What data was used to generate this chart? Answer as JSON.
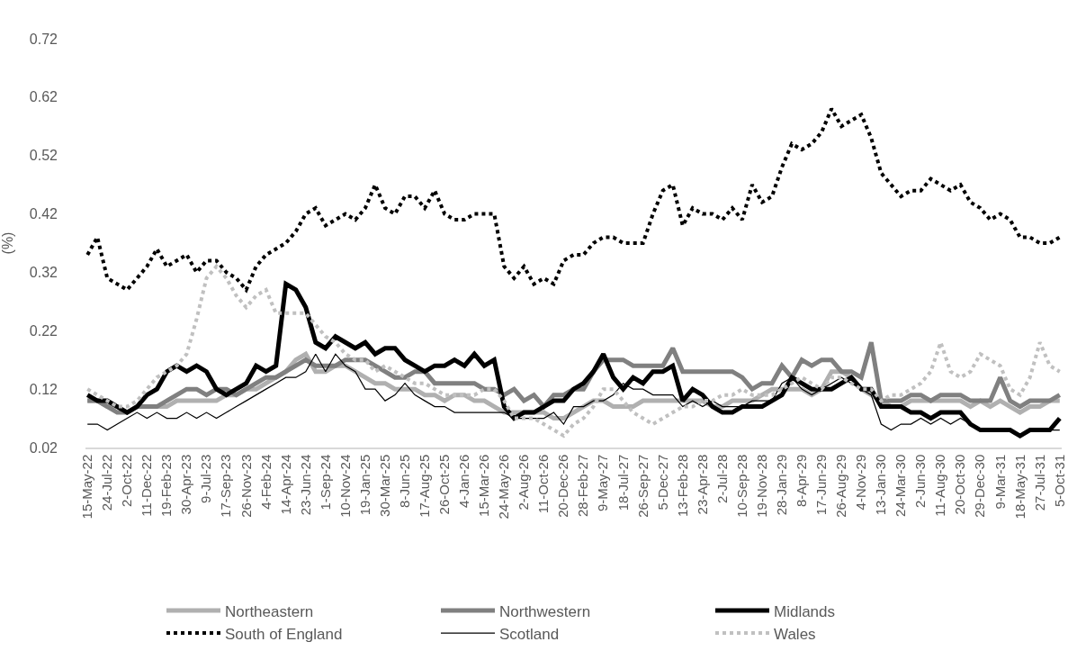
{
  "chart_data": {
    "type": "line",
    "ylabel": "(%)",
    "x": [
      "2022-05-15",
      "2022-06-19",
      "2022-07-24",
      "2022-08-28",
      "2022-10-02",
      "2022-11-06",
      "2022-12-11",
      "2023-01-15",
      "2023-02-19",
      "2023-03-26",
      "2023-04-30",
      "2023-06-04",
      "2023-07-09",
      "2023-08-13",
      "2023-09-17",
      "2023-10-22",
      "2023-11-26",
      "2023-12-31",
      "2024-02-04",
      "2024-03-10",
      "2024-04-14",
      "2024-05-19",
      "2024-06-23",
      "2024-07-28",
      "2024-09-01",
      "2024-10-06",
      "2024-11-10",
      "2024-12-15",
      "2025-01-19",
      "2025-02-23",
      "2025-03-30",
      "2025-05-04",
      "2025-06-08",
      "2025-07-13",
      "2025-08-17",
      "2025-09-21",
      "2025-10-26",
      "2025-11-30",
      "2026-01-04",
      "2026-02-08",
      "2026-03-15",
      "2026-04-19",
      "2026-05-24",
      "2026-06-28",
      "2026-08-02",
      "2026-09-06",
      "2026-10-11",
      "2026-11-15",
      "2026-12-20",
      "2027-01-24",
      "2027-02-28",
      "2027-04-04",
      "2027-05-09",
      "2027-06-13",
      "2027-07-18",
      "2027-08-22",
      "2027-09-26",
      "2027-10-31",
      "2027-12-05",
      "2028-01-09",
      "2028-02-13",
      "2028-03-19",
      "2028-04-23",
      "2028-05-28",
      "2028-07-02",
      "2028-08-06",
      "2028-09-10",
      "2028-10-15",
      "2028-11-19",
      "2028-12-24",
      "2029-01-28",
      "2029-03-04",
      "2029-04-08",
      "2029-05-13",
      "2029-06-17",
      "2029-07-22",
      "2029-08-26",
      "2029-09-30",
      "2029-11-04",
      "2029-12-09",
      "2030-01-13",
      "2030-02-17",
      "2030-03-24",
      "2030-04-28",
      "2030-06-02",
      "2030-07-07",
      "2030-08-11",
      "2030-09-15",
      "2030-10-20",
      "2030-11-24",
      "2030-12-29",
      "2031-02-02",
      "2031-03-09",
      "2031-04-13",
      "2031-05-18",
      "2031-06-22",
      "2031-07-27",
      "2031-08-31",
      "2031-10-05"
    ],
    "series": [
      {
        "name": "Northeastern",
        "color": "#b0b0b0",
        "line_style": "solid",
        "values": [
          0.1,
          0.1,
          0.09,
          0.09,
          0.08,
          0.09,
          0.09,
          0.09,
          0.09,
          0.1,
          0.1,
          0.1,
          0.1,
          0.1,
          0.11,
          0.11,
          0.12,
          0.12,
          0.13,
          0.14,
          0.15,
          0.17,
          0.18,
          0.15,
          0.15,
          0.16,
          0.16,
          0.15,
          0.14,
          0.13,
          0.13,
          0.12,
          0.12,
          0.12,
          0.11,
          0.11,
          0.1,
          0.11,
          0.11,
          0.1,
          0.1,
          0.09,
          0.08,
          0.08,
          0.08,
          0.08,
          0.08,
          0.07,
          0.07,
          0.08,
          0.09,
          0.1,
          0.1,
          0.09,
          0.09,
          0.09,
          0.1,
          0.1,
          0.1,
          0.1,
          0.1,
          0.1,
          0.1,
          0.09,
          0.09,
          0.1,
          0.1,
          0.1,
          0.11,
          0.12,
          0.12,
          0.12,
          0.12,
          0.11,
          0.12,
          0.15,
          0.15,
          0.14,
          0.12,
          0.11,
          0.1,
          0.09,
          0.09,
          0.1,
          0.1,
          0.1,
          0.1,
          0.1,
          0.1,
          0.09,
          0.1,
          0.09,
          0.1,
          0.09,
          0.08,
          0.09,
          0.09,
          0.1,
          0.1
        ]
      },
      {
        "name": "Northwestern",
        "color": "#808080",
        "line_style": "solid",
        "values": [
          0.1,
          0.1,
          0.09,
          0.08,
          0.08,
          0.09,
          0.09,
          0.09,
          0.1,
          0.11,
          0.12,
          0.12,
          0.11,
          0.12,
          0.12,
          0.11,
          0.12,
          0.13,
          0.14,
          0.14,
          0.15,
          0.16,
          0.17,
          0.16,
          0.16,
          0.16,
          0.17,
          0.17,
          0.17,
          0.16,
          0.15,
          0.14,
          0.14,
          0.15,
          0.15,
          0.13,
          0.13,
          0.13,
          0.13,
          0.13,
          0.12,
          0.12,
          0.11,
          0.12,
          0.1,
          0.11,
          0.09,
          0.11,
          0.11,
          0.12,
          0.12,
          0.15,
          0.17,
          0.17,
          0.17,
          0.16,
          0.16,
          0.16,
          0.16,
          0.19,
          0.15,
          0.15,
          0.15,
          0.15,
          0.15,
          0.15,
          0.14,
          0.12,
          0.13,
          0.13,
          0.16,
          0.14,
          0.17,
          0.16,
          0.17,
          0.17,
          0.15,
          0.15,
          0.14,
          0.2,
          0.1,
          0.1,
          0.1,
          0.11,
          0.11,
          0.1,
          0.11,
          0.11,
          0.11,
          0.1,
          0.1,
          0.1,
          0.14,
          0.1,
          0.09,
          0.1,
          0.1,
          0.1,
          0.11
        ]
      },
      {
        "name": "Midlands",
        "color": "#000000",
        "line_style": "solid",
        "values": [
          0.11,
          0.1,
          0.1,
          0.09,
          0.08,
          0.09,
          0.11,
          0.12,
          0.15,
          0.16,
          0.15,
          0.16,
          0.15,
          0.12,
          0.11,
          0.12,
          0.13,
          0.16,
          0.15,
          0.16,
          0.3,
          0.29,
          0.26,
          0.2,
          0.19,
          0.21,
          0.2,
          0.19,
          0.2,
          0.18,
          0.19,
          0.19,
          0.17,
          0.16,
          0.15,
          0.16,
          0.16,
          0.17,
          0.16,
          0.18,
          0.16,
          0.17,
          0.09,
          0.07,
          0.08,
          0.08,
          0.09,
          0.1,
          0.1,
          0.12,
          0.13,
          0.15,
          0.18,
          0.14,
          0.12,
          0.14,
          0.13,
          0.15,
          0.15,
          0.16,
          0.1,
          0.12,
          0.11,
          0.09,
          0.08,
          0.08,
          0.09,
          0.09,
          0.09,
          0.1,
          0.11,
          0.14,
          0.13,
          0.12,
          0.12,
          0.12,
          0.13,
          0.14,
          0.12,
          0.12,
          0.09,
          0.09,
          0.09,
          0.08,
          0.08,
          0.07,
          0.08,
          0.08,
          0.08,
          0.06,
          0.05,
          0.05,
          0.05,
          0.05,
          0.04,
          0.05,
          0.05,
          0.05,
          0.07
        ]
      },
      {
        "name": "South of England",
        "color": "#000000",
        "line_style": "dotted",
        "values": [
          0.35,
          0.38,
          0.31,
          0.3,
          0.29,
          0.31,
          0.33,
          0.36,
          0.33,
          0.34,
          0.35,
          0.32,
          0.34,
          0.34,
          0.32,
          0.31,
          0.29,
          0.33,
          0.35,
          0.36,
          0.37,
          0.39,
          0.42,
          0.43,
          0.4,
          0.41,
          0.42,
          0.41,
          0.43,
          0.47,
          0.43,
          0.42,
          0.45,
          0.45,
          0.43,
          0.46,
          0.42,
          0.41,
          0.41,
          0.42,
          0.42,
          0.42,
          0.33,
          0.31,
          0.33,
          0.3,
          0.31,
          0.3,
          0.34,
          0.35,
          0.35,
          0.37,
          0.38,
          0.38,
          0.37,
          0.37,
          0.37,
          0.42,
          0.46,
          0.47,
          0.4,
          0.43,
          0.42,
          0.42,
          0.41,
          0.43,
          0.41,
          0.47,
          0.44,
          0.45,
          0.5,
          0.54,
          0.53,
          0.54,
          0.56,
          0.6,
          0.57,
          0.58,
          0.59,
          0.55,
          0.49,
          0.47,
          0.45,
          0.46,
          0.46,
          0.48,
          0.47,
          0.46,
          0.47,
          0.44,
          0.43,
          0.41,
          0.42,
          0.41,
          0.38,
          0.38,
          0.37,
          0.37,
          0.38
        ]
      },
      {
        "name": "Scotland",
        "color": "#000000",
        "line_style": "solid",
        "values": [
          0.06,
          0.06,
          0.05,
          0.06,
          0.07,
          0.08,
          0.07,
          0.08,
          0.07,
          0.07,
          0.08,
          0.07,
          0.08,
          0.07,
          0.08,
          0.09,
          0.1,
          0.11,
          0.12,
          0.13,
          0.14,
          0.14,
          0.15,
          0.18,
          0.15,
          0.18,
          0.16,
          0.15,
          0.12,
          0.12,
          0.1,
          0.11,
          0.13,
          0.11,
          0.1,
          0.09,
          0.09,
          0.08,
          0.08,
          0.08,
          0.08,
          0.08,
          0.08,
          0.07,
          0.07,
          0.07,
          0.07,
          0.08,
          0.06,
          0.09,
          0.09,
          0.1,
          0.1,
          0.11,
          0.13,
          0.12,
          0.12,
          0.11,
          0.11,
          0.11,
          0.09,
          0.1,
          0.09,
          0.1,
          0.09,
          0.09,
          0.09,
          0.1,
          0.1,
          0.1,
          0.13,
          0.14,
          0.12,
          0.11,
          0.12,
          0.13,
          0.14,
          0.13,
          0.12,
          0.11,
          0.06,
          0.05,
          0.06,
          0.06,
          0.07,
          0.06,
          0.07,
          0.06,
          0.07,
          0.06,
          0.05,
          0.05,
          0.05,
          0.05,
          0.04,
          0.05,
          0.05,
          0.05,
          0.05
        ]
      },
      {
        "name": "Wales",
        "color": "#c0c0c0",
        "line_style": "dotted",
        "values": [
          0.12,
          0.11,
          0.1,
          0.09,
          0.09,
          0.1,
          0.12,
          0.14,
          0.15,
          0.16,
          0.18,
          0.24,
          0.31,
          0.33,
          0.31,
          0.28,
          0.26,
          0.28,
          0.29,
          0.25,
          0.25,
          0.25,
          0.25,
          0.23,
          0.21,
          0.2,
          0.18,
          0.17,
          0.17,
          0.15,
          0.16,
          0.15,
          0.14,
          0.13,
          0.13,
          0.12,
          0.11,
          0.11,
          0.11,
          0.11,
          0.12,
          0.12,
          0.1,
          0.07,
          0.07,
          0.07,
          0.06,
          0.05,
          0.04,
          0.06,
          0.07,
          0.09,
          0.12,
          0.12,
          0.1,
          0.08,
          0.07,
          0.06,
          0.07,
          0.08,
          0.09,
          0.09,
          0.1,
          0.1,
          0.11,
          0.11,
          0.12,
          0.11,
          0.11,
          0.11,
          0.12,
          0.13,
          0.14,
          0.13,
          0.12,
          0.14,
          0.14,
          0.13,
          0.12,
          0.12,
          0.1,
          0.11,
          0.11,
          0.12,
          0.13,
          0.15,
          0.2,
          0.15,
          0.14,
          0.15,
          0.18,
          0.17,
          0.16,
          0.12,
          0.11,
          0.14,
          0.2,
          0.16,
          0.15
        ]
      }
    ],
    "xlim": [
      "2022-05-08",
      "2031-10-12"
    ],
    "xticks": [
      {
        "value": "2022-05-15",
        "label": "15-May-22"
      },
      {
        "value": "2022-07-24",
        "label": "24-Jul-22"
      },
      {
        "value": "2022-10-02",
        "label": "2-Oct-22"
      },
      {
        "value": "2022-12-11",
        "label": "11-Dec-22"
      },
      {
        "value": "2023-02-19",
        "label": "19-Feb-23"
      },
      {
        "value": "2023-04-30",
        "label": "30-Apr-23"
      },
      {
        "value": "2023-07-09",
        "label": "9-Jul-23"
      },
      {
        "value": "2023-09-17",
        "label": "17-Sep-23"
      },
      {
        "value": "2023-11-26",
        "label": "26-Nov-23"
      },
      {
        "value": "2024-02-04",
        "label": "4-Feb-24"
      },
      {
        "value": "2024-04-14",
        "label": "14-Apr-24"
      },
      {
        "value": "2024-06-23",
        "label": "23-Jun-24"
      },
      {
        "value": "2024-09-01",
        "label": "1-Sep-24"
      },
      {
        "value": "2024-11-10",
        "label": "10-Nov-24"
      },
      {
        "value": "2025-01-19",
        "label": "19-Jan-25"
      },
      {
        "value": "2025-03-30",
        "label": "30-Mar-25"
      },
      {
        "value": "2025-06-08",
        "label": "8-Jun-25"
      },
      {
        "value": "2025-08-17",
        "label": "17-Aug-25"
      },
      {
        "value": "2025-10-26",
        "label": "26-Oct-25"
      },
      {
        "value": "2026-01-04",
        "label": "4-Jan-26"
      },
      {
        "value": "2026-03-15",
        "label": "15-Mar-26"
      },
      {
        "value": "2026-05-24",
        "label": "24-May-26"
      },
      {
        "value": "2026-08-02",
        "label": "2-Aug-26"
      },
      {
        "value": "2026-10-11",
        "label": "11-Oct-26"
      },
      {
        "value": "2026-12-20",
        "label": "20-Dec-26"
      },
      {
        "value": "2027-02-28",
        "label": "28-Feb-27"
      },
      {
        "value": "2027-05-09",
        "label": "9-May-27"
      },
      {
        "value": "2027-07-18",
        "label": "18-Jul-27"
      },
      {
        "value": "2027-09-26",
        "label": "26-Sep-27"
      },
      {
        "value": "2027-12-05",
        "label": "5-Dec-27"
      },
      {
        "value": "2028-02-13",
        "label": "13-Feb-28"
      },
      {
        "value": "2028-04-23",
        "label": "23-Apr-28"
      },
      {
        "value": "2028-07-02",
        "label": "2-Jul-28"
      },
      {
        "value": "2028-09-10",
        "label": "10-Sep-28"
      },
      {
        "value": "2028-11-19",
        "label": "19-Nov-28"
      },
      {
        "value": "2029-01-28",
        "label": "28-Jan-29"
      },
      {
        "value": "2029-04-08",
        "label": "8-Apr-29"
      },
      {
        "value": "2029-06-17",
        "label": "17-Jun-29"
      },
      {
        "value": "2029-08-26",
        "label": "26-Aug-29"
      },
      {
        "value": "2029-11-04",
        "label": "4-Nov-29"
      },
      {
        "value": "2030-01-13",
        "label": "13-Jan-30"
      },
      {
        "value": "2030-03-24",
        "label": "24-Mar-30"
      },
      {
        "value": "2030-06-02",
        "label": "2-Jun-30"
      },
      {
        "value": "2030-08-11",
        "label": "11-Aug-30"
      },
      {
        "value": "2030-10-20",
        "label": "20-Oct-30"
      },
      {
        "value": "2030-12-29",
        "label": "29-Dec-30"
      },
      {
        "value": "2031-03-09",
        "label": "9-Mar-31"
      },
      {
        "value": "2031-05-18",
        "label": "18-May-31"
      },
      {
        "value": "2031-07-27",
        "label": "27-Jul-31"
      },
      {
        "value": "2031-10-05",
        "label": "5-Oct-31"
      }
    ],
    "ylim": [
      0.02,
      0.72
    ],
    "yticks": [
      0.02,
      0.12,
      0.22,
      0.32,
      0.42,
      0.52,
      0.62,
      0.72
    ],
    "grid": false,
    "legend": "bottom",
    "marker": "none"
  }
}
